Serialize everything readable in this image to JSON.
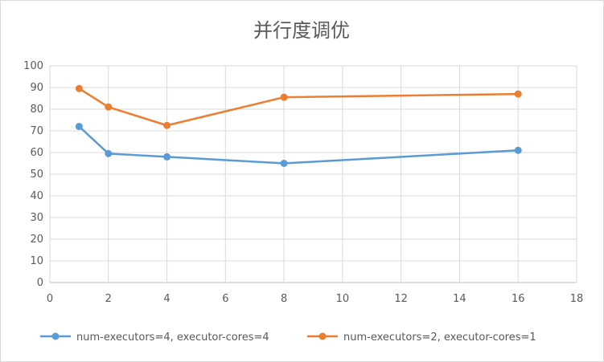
{
  "chart_data": {
    "type": "line",
    "title": "并行度调优",
    "xlabel": "",
    "ylabel": "",
    "xlim": [
      0,
      18
    ],
    "ylim": [
      0,
      100
    ],
    "x_ticks": [
      0,
      2,
      4,
      6,
      8,
      10,
      12,
      14,
      16,
      18
    ],
    "y_ticks": [
      0,
      10,
      20,
      30,
      40,
      50,
      60,
      70,
      80,
      90,
      100
    ],
    "grid": true,
    "legend": "bottom",
    "series": [
      {
        "name": "num-executors=4, executor-cores=4",
        "color": "#5b9bd5",
        "x": [
          1,
          2,
          4,
          8,
          16
        ],
        "y": [
          72,
          59.5,
          58,
          55,
          61
        ]
      },
      {
        "name": "num-executors=2, executor-cores=1",
        "color": "#ed7d31",
        "x": [
          1,
          2,
          4,
          8,
          16
        ],
        "y": [
          89.5,
          81,
          72.5,
          85.5,
          87
        ]
      }
    ]
  }
}
